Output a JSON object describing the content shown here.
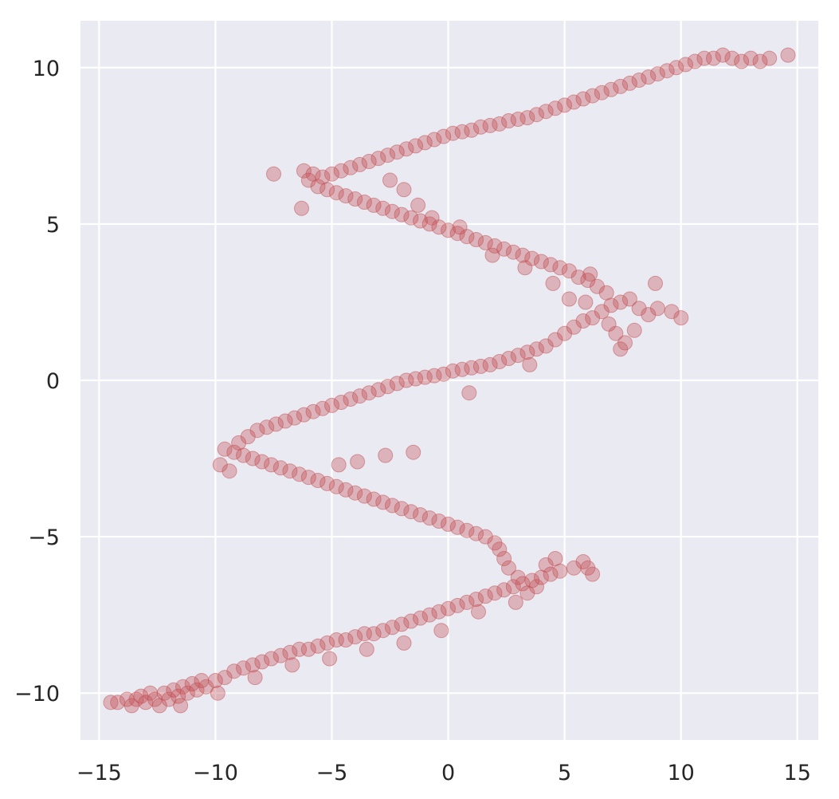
{
  "chart_data": {
    "type": "scatter",
    "title": "",
    "xlabel": "",
    "ylabel": "",
    "xlim": [
      -15.8,
      15.9
    ],
    "ylim": [
      -11.5,
      11.5
    ],
    "grid": true,
    "background": "#eaeaf2",
    "grid_color": "#ffffff",
    "xticks": [
      -15,
      -10,
      -5,
      0,
      5,
      10,
      15
    ],
    "yticks": [
      -10,
      -5,
      0,
      5,
      10
    ],
    "xtick_labels": [
      "−15",
      "−10",
      "−5",
      "0",
      "5",
      "10",
      "15"
    ],
    "ytick_labels": [
      "−10",
      "−5",
      "0",
      "5",
      "10"
    ],
    "series": [
      {
        "color": "#c44e52",
        "opacity": 0.35,
        "values_description_only_for_script": null,
        "points": [
          [
            -14.5,
            -10.3
          ],
          [
            -14.2,
            -10.3
          ],
          [
            -13.8,
            -10.2
          ],
          [
            -13.6,
            -10.4
          ],
          [
            -13.4,
            -10.2
          ],
          [
            -13.2,
            -10.1
          ],
          [
            -13.0,
            -10.3
          ],
          [
            -12.8,
            -10.0
          ],
          [
            -12.6,
            -10.2
          ],
          [
            -12.4,
            -10.4
          ],
          [
            -12.2,
            -10.0
          ],
          [
            -12.0,
            -10.2
          ],
          [
            -11.8,
            -9.9
          ],
          [
            -11.6,
            -10.1
          ],
          [
            -11.4,
            -9.8
          ],
          [
            -11.2,
            -10.0
          ],
          [
            -11.0,
            -9.7
          ],
          [
            -10.8,
            -9.9
          ],
          [
            -10.6,
            -9.6
          ],
          [
            -10.4,
            -9.8
          ],
          [
            -10.0,
            -9.6
          ],
          [
            -9.6,
            -9.5
          ],
          [
            -9.2,
            -9.3
          ],
          [
            -8.8,
            -9.2
          ],
          [
            -8.4,
            -9.1
          ],
          [
            -8.0,
            -9.0
          ],
          [
            -7.6,
            -8.9
          ],
          [
            -7.2,
            -8.8
          ],
          [
            -6.8,
            -8.7
          ],
          [
            -6.4,
            -8.6
          ],
          [
            -6.0,
            -8.6
          ],
          [
            -5.6,
            -8.5
          ],
          [
            -5.2,
            -8.4
          ],
          [
            -4.8,
            -8.3
          ],
          [
            -4.4,
            -8.3
          ],
          [
            -4.0,
            -8.2
          ],
          [
            -3.6,
            -8.1
          ],
          [
            -3.2,
            -8.1
          ],
          [
            -2.8,
            -8.0
          ],
          [
            -2.4,
            -7.9
          ],
          [
            -2.0,
            -7.8
          ],
          [
            -1.6,
            -7.7
          ],
          [
            -1.2,
            -7.6
          ],
          [
            -0.8,
            -7.5
          ],
          [
            -0.4,
            -7.4
          ],
          [
            0.0,
            -7.3
          ],
          [
            0.4,
            -7.2
          ],
          [
            0.8,
            -7.1
          ],
          [
            1.2,
            -7.0
          ],
          [
            1.6,
            -6.9
          ],
          [
            2.0,
            -6.8
          ],
          [
            2.4,
            -6.7
          ],
          [
            2.8,
            -6.6
          ],
          [
            3.2,
            -6.5
          ],
          [
            3.6,
            -6.4
          ],
          [
            4.0,
            -6.3
          ],
          [
            4.4,
            -6.2
          ],
          [
            4.8,
            -6.1
          ],
          [
            5.4,
            -6.0
          ],
          [
            6.0,
            -6.0
          ],
          [
            6.2,
            -6.2
          ],
          [
            5.8,
            -5.8
          ],
          [
            4.6,
            -5.7
          ],
          [
            4.2,
            -5.9
          ],
          [
            3.8,
            -6.6
          ],
          [
            3.4,
            -6.8
          ],
          [
            3.0,
            -6.3
          ],
          [
            2.6,
            -6.0
          ],
          [
            2.4,
            -5.7
          ],
          [
            2.2,
            -5.4
          ],
          [
            2.0,
            -5.2
          ],
          [
            1.6,
            -5.0
          ],
          [
            1.2,
            -4.9
          ],
          [
            0.8,
            -4.8
          ],
          [
            0.4,
            -4.7
          ],
          [
            0.0,
            -4.6
          ],
          [
            -0.4,
            -4.5
          ],
          [
            -0.8,
            -4.4
          ],
          [
            -1.2,
            -4.3
          ],
          [
            -1.6,
            -4.2
          ],
          [
            -2.0,
            -4.1
          ],
          [
            -2.4,
            -4.0
          ],
          [
            -2.8,
            -3.9
          ],
          [
            -3.2,
            -3.8
          ],
          [
            -3.6,
            -3.7
          ],
          [
            -4.0,
            -3.6
          ],
          [
            -4.4,
            -3.5
          ],
          [
            -4.8,
            -3.4
          ],
          [
            -5.2,
            -3.3
          ],
          [
            -5.6,
            -3.2
          ],
          [
            -6.0,
            -3.1
          ],
          [
            -6.4,
            -3.0
          ],
          [
            -6.8,
            -2.9
          ],
          [
            -7.2,
            -2.8
          ],
          [
            -7.6,
            -2.7
          ],
          [
            -8.0,
            -2.6
          ],
          [
            -8.4,
            -2.5
          ],
          [
            -8.8,
            -2.4
          ],
          [
            -9.2,
            -2.3
          ],
          [
            -9.6,
            -2.2
          ],
          [
            -9.8,
            -2.7
          ],
          [
            -9.4,
            -2.9
          ],
          [
            -9.0,
            -2.0
          ],
          [
            -8.6,
            -1.8
          ],
          [
            -8.2,
            -1.6
          ],
          [
            -7.8,
            -1.5
          ],
          [
            -7.4,
            -1.4
          ],
          [
            -7.0,
            -1.3
          ],
          [
            -6.6,
            -1.2
          ],
          [
            -6.2,
            -1.1
          ],
          [
            -5.8,
            -1.0
          ],
          [
            -5.4,
            -0.9
          ],
          [
            -5.0,
            -0.8
          ],
          [
            -4.6,
            -0.7
          ],
          [
            -4.2,
            -0.6
          ],
          [
            -3.8,
            -0.5
          ],
          [
            -3.4,
            -0.4
          ],
          [
            -3.0,
            -0.3
          ],
          [
            -2.6,
            -0.2
          ],
          [
            -2.2,
            -0.1
          ],
          [
            -1.8,
            0.0
          ],
          [
            -1.4,
            0.05
          ],
          [
            -1.0,
            0.1
          ],
          [
            -0.6,
            0.15
          ],
          [
            -0.2,
            0.2
          ],
          [
            0.2,
            0.3
          ],
          [
            0.6,
            0.35
          ],
          [
            1.0,
            0.4
          ],
          [
            1.4,
            0.45
          ],
          [
            1.8,
            0.5
          ],
          [
            2.2,
            0.6
          ],
          [
            2.6,
            0.7
          ],
          [
            3.0,
            0.8
          ],
          [
            3.4,
            0.9
          ],
          [
            3.8,
            1.0
          ],
          [
            4.2,
            1.1
          ],
          [
            4.6,
            1.3
          ],
          [
            5.0,
            1.5
          ],
          [
            5.4,
            1.7
          ],
          [
            5.8,
            1.9
          ],
          [
            6.2,
            2.0
          ],
          [
            6.6,
            2.2
          ],
          [
            7.0,
            2.4
          ],
          [
            7.4,
            2.5
          ],
          [
            7.8,
            2.6
          ],
          [
            8.2,
            2.3
          ],
          [
            8.6,
            2.1
          ],
          [
            9.0,
            2.3
          ],
          [
            9.6,
            2.2
          ],
          [
            10.0,
            2.0
          ],
          [
            8.0,
            1.6
          ],
          [
            7.6,
            1.2
          ],
          [
            7.2,
            1.5
          ],
          [
            6.8,
            2.8
          ],
          [
            6.4,
            3.0
          ],
          [
            6.0,
            3.2
          ],
          [
            5.6,
            3.3
          ],
          [
            5.2,
            3.5
          ],
          [
            4.8,
            3.6
          ],
          [
            4.4,
            3.7
          ],
          [
            4.0,
            3.8
          ],
          [
            3.6,
            3.9
          ],
          [
            3.2,
            4.0
          ],
          [
            2.8,
            4.1
          ],
          [
            2.4,
            4.2
          ],
          [
            2.0,
            4.3
          ],
          [
            1.6,
            4.4
          ],
          [
            1.2,
            4.5
          ],
          [
            0.8,
            4.6
          ],
          [
            0.4,
            4.7
          ],
          [
            0.0,
            4.8
          ],
          [
            -0.4,
            4.9
          ],
          [
            -0.8,
            5.0
          ],
          [
            -1.2,
            5.1
          ],
          [
            -1.6,
            5.2
          ],
          [
            -2.0,
            5.3
          ],
          [
            -2.4,
            5.4
          ],
          [
            -2.8,
            5.5
          ],
          [
            -3.2,
            5.6
          ],
          [
            -3.6,
            5.7
          ],
          [
            -4.0,
            5.8
          ],
          [
            -4.4,
            5.9
          ],
          [
            -4.8,
            6.0
          ],
          [
            -5.2,
            6.1
          ],
          [
            -5.6,
            6.2
          ],
          [
            -6.0,
            6.4
          ],
          [
            -6.2,
            6.7
          ],
          [
            -5.8,
            6.6
          ],
          [
            -5.4,
            6.5
          ],
          [
            -5.0,
            6.6
          ],
          [
            -4.6,
            6.7
          ],
          [
            -4.2,
            6.8
          ],
          [
            -3.8,
            6.9
          ],
          [
            -3.4,
            7.0
          ],
          [
            -3.0,
            7.1
          ],
          [
            -2.6,
            7.2
          ],
          [
            -2.2,
            7.3
          ],
          [
            -1.8,
            7.4
          ],
          [
            -1.4,
            7.5
          ],
          [
            -1.0,
            7.6
          ],
          [
            -0.6,
            7.7
          ],
          [
            -0.2,
            7.8
          ],
          [
            0.2,
            7.9
          ],
          [
            0.6,
            7.95
          ],
          [
            1.0,
            8.0
          ],
          [
            1.4,
            8.1
          ],
          [
            1.8,
            8.15
          ],
          [
            2.2,
            8.2
          ],
          [
            2.6,
            8.3
          ],
          [
            3.0,
            8.35
          ],
          [
            3.4,
            8.4
          ],
          [
            3.8,
            8.5
          ],
          [
            4.2,
            8.6
          ],
          [
            4.6,
            8.7
          ],
          [
            5.0,
            8.8
          ],
          [
            5.4,
            8.9
          ],
          [
            5.8,
            9.0
          ],
          [
            6.2,
            9.1
          ],
          [
            6.6,
            9.2
          ],
          [
            7.0,
            9.3
          ],
          [
            7.4,
            9.4
          ],
          [
            7.8,
            9.5
          ],
          [
            8.2,
            9.6
          ],
          [
            8.6,
            9.7
          ],
          [
            9.0,
            9.8
          ],
          [
            9.4,
            9.9
          ],
          [
            9.8,
            10.0
          ],
          [
            10.2,
            10.1
          ],
          [
            10.6,
            10.2
          ],
          [
            11.0,
            10.3
          ],
          [
            11.4,
            10.3
          ],
          [
            11.8,
            10.4
          ],
          [
            12.2,
            10.3
          ],
          [
            12.6,
            10.2
          ],
          [
            13.0,
            10.3
          ],
          [
            13.4,
            10.2
          ],
          [
            13.8,
            10.3
          ],
          [
            14.6,
            10.4
          ],
          [
            -7.5,
            6.6
          ],
          [
            -6.3,
            5.5
          ],
          [
            -4.7,
            -2.7
          ],
          [
            -3.9,
            -2.6
          ],
          [
            -2.7,
            -2.4
          ],
          [
            -1.5,
            -2.3
          ],
          [
            0.9,
            -0.4
          ],
          [
            3.5,
            0.5
          ],
          [
            5.2,
            2.6
          ],
          [
            6.1,
            3.4
          ],
          [
            7.4,
            1.0
          ],
          [
            8.9,
            3.1
          ],
          [
            2.9,
            -7.1
          ],
          [
            1.3,
            -7.4
          ],
          [
            -0.3,
            -8.0
          ],
          [
            -1.9,
            -8.4
          ],
          [
            -3.5,
            -8.6
          ],
          [
            -5.1,
            -8.9
          ],
          [
            -6.7,
            -9.1
          ],
          [
            -8.3,
            -9.5
          ],
          [
            -9.9,
            -10.0
          ],
          [
            -11.5,
            -10.4
          ],
          [
            -2.5,
            6.4
          ],
          [
            -1.9,
            6.1
          ],
          [
            -1.3,
            5.6
          ],
          [
            -0.7,
            5.2
          ],
          [
            0.5,
            4.9
          ],
          [
            1.9,
            4.0
          ],
          [
            3.3,
            3.6
          ],
          [
            4.5,
            3.1
          ],
          [
            5.9,
            2.5
          ],
          [
            6.9,
            1.8
          ]
        ]
      }
    ]
  }
}
